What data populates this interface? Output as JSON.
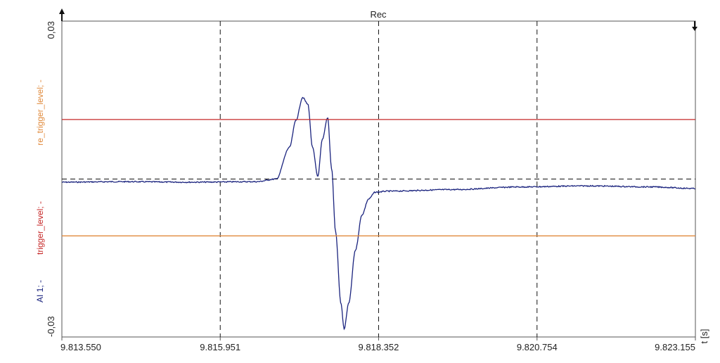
{
  "chart_data": {
    "type": "line",
    "title": "Rec",
    "xlabel": "t [s]",
    "xlim": [
      9.81355,
      9.823155
    ],
    "ylim": [
      -0.03,
      0.03
    ],
    "grid": true,
    "x_ticks": [
      {
        "value": 9.81355,
        "label": "9.813.550"
      },
      {
        "value": 9.815951,
        "label": "9.815.951"
      },
      {
        "value": 9.818352,
        "label": "9.818.352"
      },
      {
        "value": 9.820754,
        "label": "9.820.754"
      },
      {
        "value": 9.823155,
        "label": "9.823.155"
      }
    ],
    "y_ticks": [
      {
        "value": 0.03,
        "label": "0,03"
      },
      {
        "value": -0.03,
        "label": "-0,03"
      }
    ],
    "y_axis_labels": [
      {
        "text": "AI 1; -",
        "color": "#1a237e"
      },
      {
        "text": "trigger_level; -",
        "color": "#c62828"
      },
      {
        "text": "re_trigger_level; -",
        "color": "#e08a3c"
      }
    ],
    "series": [
      {
        "name": "AI 1",
        "color": "#1a237e",
        "x": [
          9.81355,
          9.8145,
          9.8155,
          9.8165,
          9.8168,
          9.817,
          9.8171,
          9.8172,
          9.81728,
          9.81735,
          9.81743,
          9.8175,
          9.81758,
          9.81764,
          9.8177,
          9.81778,
          9.81783,
          9.8179,
          9.818,
          9.8181,
          9.8182,
          9.8183,
          9.8185,
          9.8195,
          9.8205,
          9.8215,
          9.8225,
          9.823155
        ],
        "y": [
          -0.0006,
          -0.0005,
          -0.0006,
          -0.0005,
          0.0,
          0.006,
          0.0112,
          0.0155,
          0.0142,
          0.006,
          0.0005,
          0.0075,
          0.0117,
          0.002,
          -0.01,
          -0.0235,
          -0.0285,
          -0.0235,
          -0.0135,
          -0.0068,
          -0.0038,
          -0.0025,
          -0.0023,
          -0.002,
          -0.0015,
          -0.0013,
          -0.0015,
          -0.0018
        ]
      },
      {
        "name": "trigger_level",
        "color": "#c62828",
        "x": [
          9.81355,
          9.823155
        ],
        "y": [
          0.0113,
          0.0113
        ]
      },
      {
        "name": "re_trigger_level",
        "color": "#e08a3c",
        "x": [
          9.81355,
          9.823155
        ],
        "y": [
          -0.0108,
          -0.0108
        ]
      }
    ]
  }
}
